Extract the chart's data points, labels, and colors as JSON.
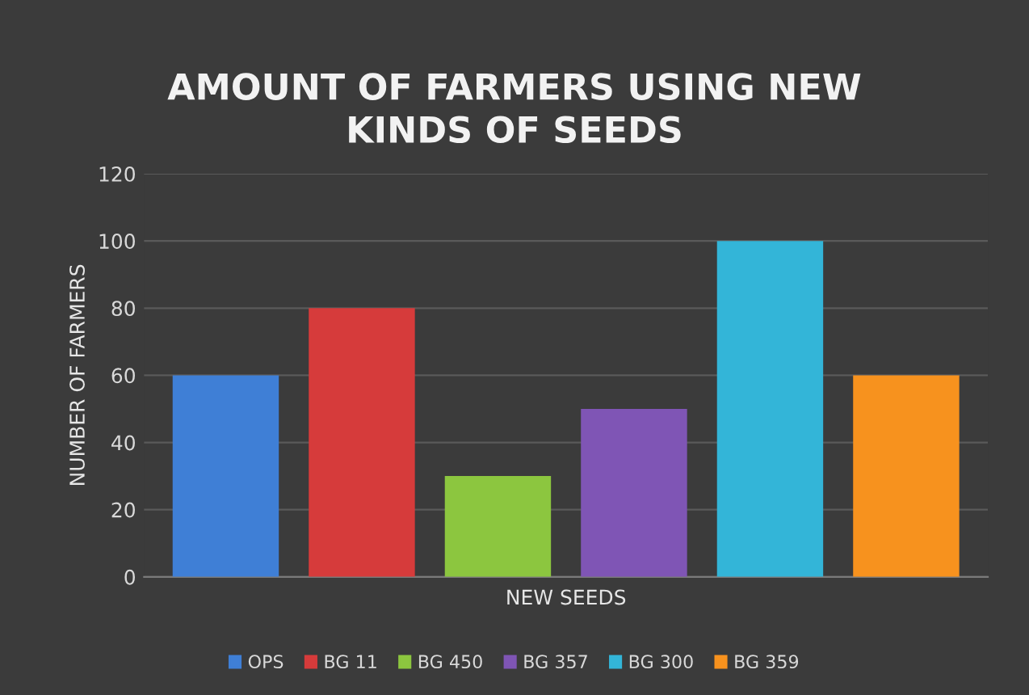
{
  "chart_data": {
    "type": "bar",
    "title": "AMOUNT OF FARMERS USING NEW\nKINDS OF SEEDS",
    "xlabel": "NEW SEEDS",
    "ylabel": "NUMBER OF FARMERS",
    "categories": [
      null,
      null,
      null,
      null,
      null,
      null
    ],
    "series": [
      {
        "name": "OPS",
        "color": "#3f7fd6",
        "values": [
          60,
          null,
          null,
          null,
          null,
          null
        ]
      },
      {
        "name": "BG 11",
        "color": "#d63b3b",
        "values": [
          null,
          80,
          null,
          null,
          null,
          null
        ]
      },
      {
        "name": "BG 450",
        "color": "#8cc63f",
        "values": [
          null,
          null,
          30,
          null,
          null,
          null
        ]
      },
      {
        "name": "BG 357",
        "color": "#7f55b5",
        "values": [
          null,
          null,
          null,
          50,
          null,
          null
        ]
      },
      {
        "name": "BG 300",
        "color": "#33b5d8",
        "values": [
          null,
          null,
          null,
          null,
          100,
          null
        ]
      },
      {
        "name": "BG 359",
        "color": "#f7921e",
        "values": [
          null,
          null,
          null,
          null,
          null,
          60
        ]
      }
    ],
    "ylim": [
      0,
      120
    ],
    "yticks": [
      0,
      20,
      40,
      60,
      80,
      100,
      120
    ],
    "grid": "y",
    "legend": "bottom"
  }
}
